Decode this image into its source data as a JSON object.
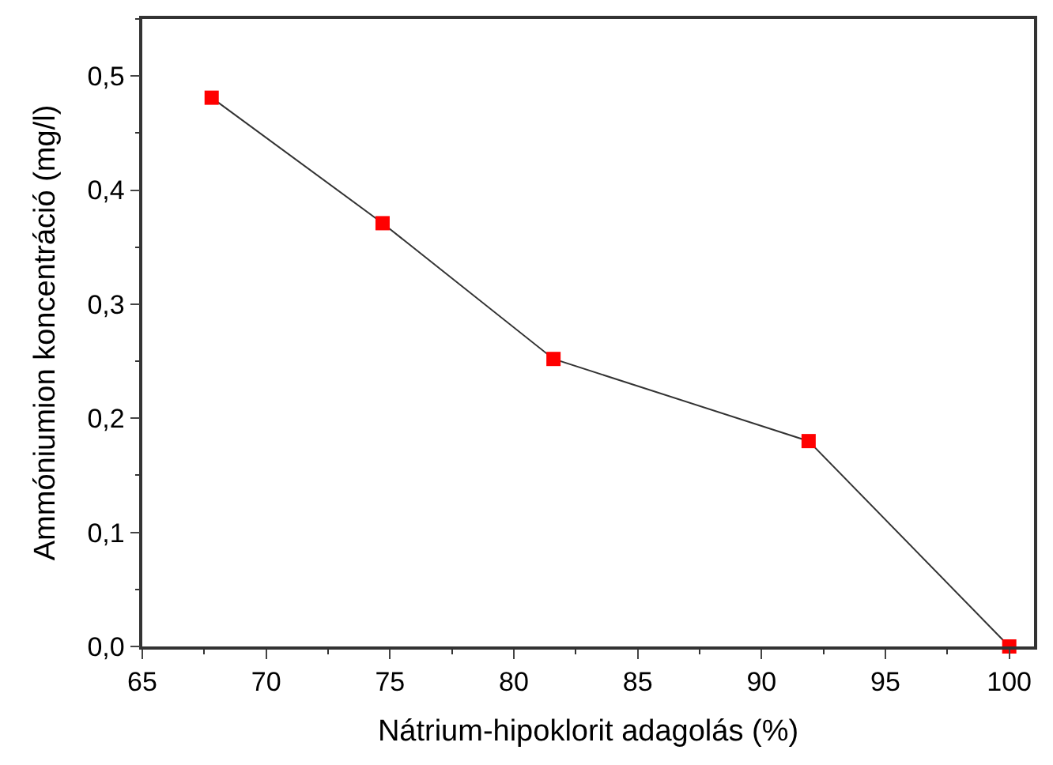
{
  "chart_data": {
    "type": "line",
    "xlabel": "Nátrium-hipoklorit adagolás (%)",
    "ylabel": "Ammóniumion koncentráció (mg/l)",
    "x": [
      67.8,
      74.7,
      81.6,
      91.9,
      100
    ],
    "series": [
      {
        "color": "#ff0000",
        "values": [
          0.481,
          0.371,
          0.252,
          0.18,
          0.0
        ]
      }
    ],
    "xlim": [
      65,
      101
    ],
    "xticks": [
      65,
      70,
      75,
      80,
      85,
      90,
      95,
      100
    ],
    "ylim": [
      0,
      0.55
    ],
    "yticks": [
      {
        "value": 0,
        "label": "0,0"
      },
      {
        "value": 0.1,
        "label": "0,1"
      },
      {
        "value": 0.2,
        "label": "0,2"
      },
      {
        "value": 0.3,
        "label": "0,3"
      },
      {
        "value": 0.4,
        "label": "0,4"
      },
      {
        "value": 0.5,
        "label": "0,5"
      }
    ],
    "marker": "square",
    "line_style": "solid"
  }
}
